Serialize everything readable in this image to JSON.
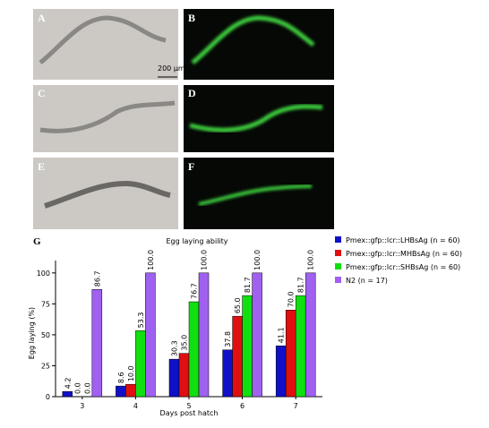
{
  "panels": {
    "A": "A",
    "B": "B",
    "C": "C",
    "D": "D",
    "E": "E",
    "F": "F",
    "G": "G",
    "scale_bar": "200 μm"
  },
  "chart_data": {
    "type": "bar",
    "title": "Egg laying ability",
    "x_label": "Days post hatch",
    "y_label": "Egg laying (%)",
    "categories": [
      "3",
      "4",
      "5",
      "6",
      "7"
    ],
    "series": [
      {
        "name": "Pmex::gfp::lcr::LHBsAg (n = 60)",
        "color": "#1010c8",
        "values": [
          4.2,
          8.6,
          30.3,
          37.8,
          41.1
        ],
        "value_labels": [
          "4.2",
          "8.6",
          "30.3",
          "37.8",
          "41.1"
        ]
      },
      {
        "name": "Pmex::gfp::lcr::MHBsAg (n = 60)",
        "color": "#e01010",
        "values": [
          0,
          10,
          35,
          65,
          70
        ],
        "value_labels": [
          "0.0",
          "10.0",
          "35.0",
          "65.0",
          "70.0"
        ]
      },
      {
        "name": "Pmex::gfp::lcr::SHBsAg (n = 60)",
        "color": "#10e010",
        "values": [
          0,
          53.3,
          76.7,
          81.7,
          81.7
        ],
        "value_labels": [
          "0.0",
          "53.3",
          "76.7",
          "81.7",
          "81.7"
        ]
      },
      {
        "name": "N2 (n = 17)",
        "color": "#a060f0",
        "values": [
          86.7,
          100,
          100,
          100,
          100
        ],
        "value_labels": [
          "86.7",
          "100.0",
          "100.0",
          "100.0",
          "100.0"
        ]
      }
    ],
    "ylim": [
      0,
      110
    ],
    "yticks": [
      0,
      25,
      50,
      75,
      100
    ]
  }
}
